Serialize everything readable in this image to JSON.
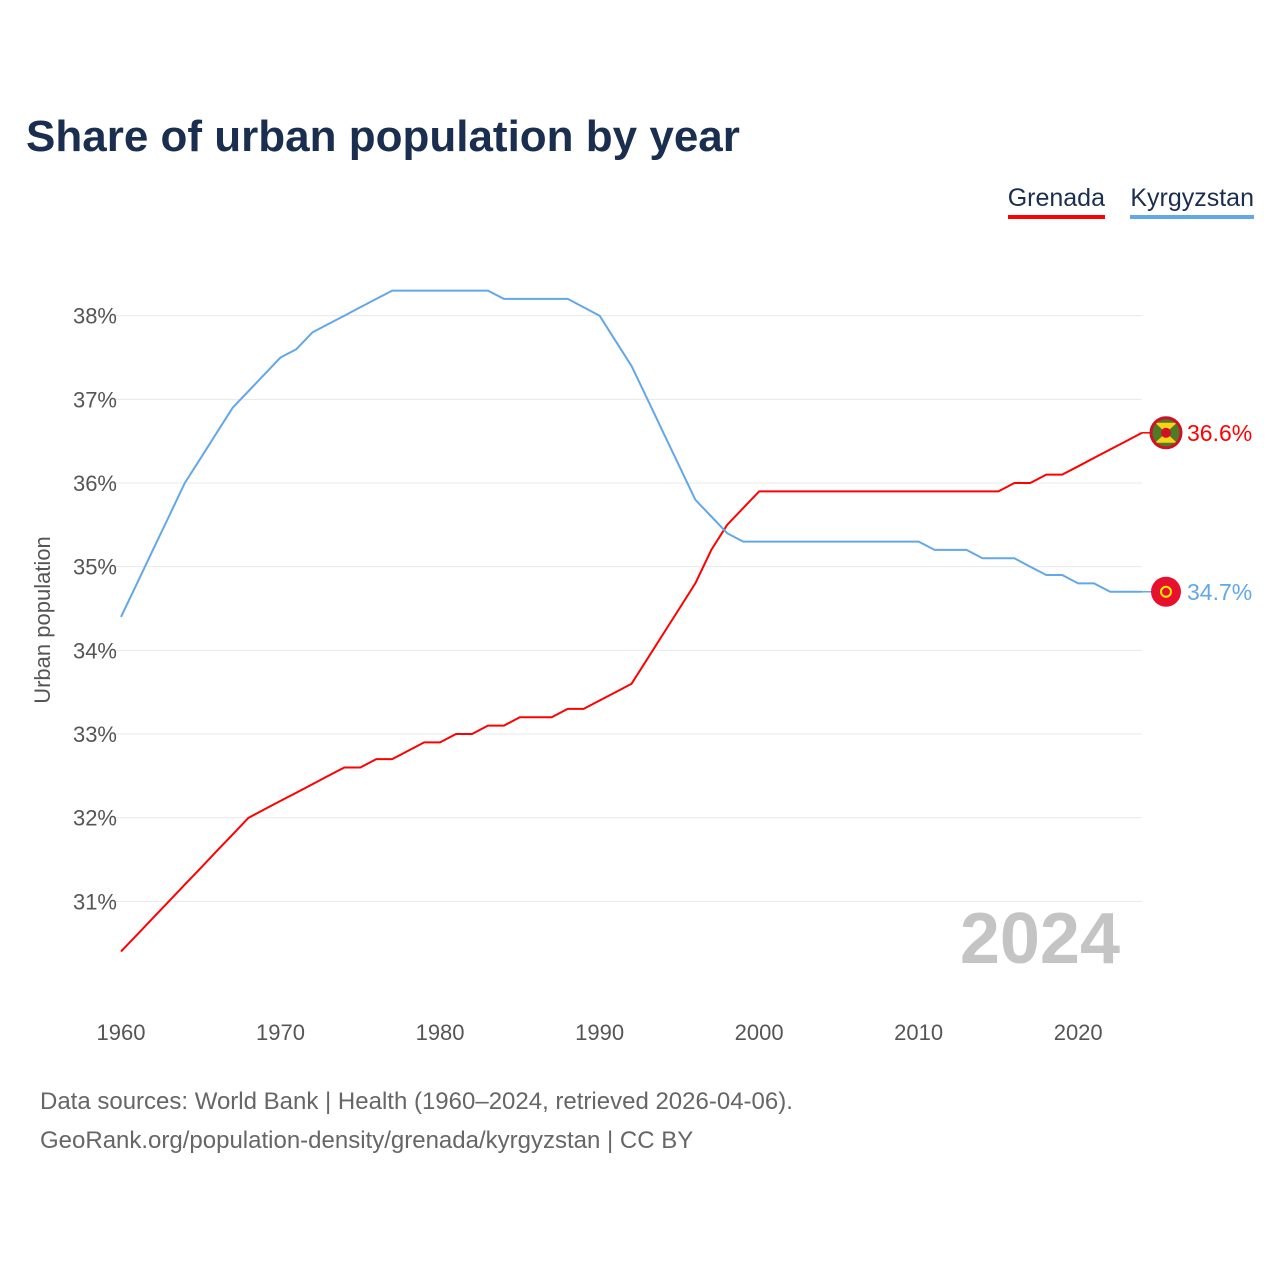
{
  "chart_data": {
    "type": "line",
    "title": "Share of urban population by year",
    "ylabel": "Urban population",
    "xlabel": "",
    "xlim": [
      1960,
      2024
    ],
    "ylim": [
      30,
      39
    ],
    "x_ticks": [
      1960,
      1970,
      1980,
      1990,
      2000,
      2010,
      2020
    ],
    "y_ticks": [
      31,
      32,
      33,
      34,
      35,
      36,
      37,
      38
    ],
    "y_tick_labels": [
      "31%",
      "32%",
      "33%",
      "34%",
      "35%",
      "36%",
      "37%",
      "38%"
    ],
    "grid": true,
    "legend_position": "top-right",
    "year_watermark": "2024",
    "x": [
      1960,
      1961,
      1962,
      1963,
      1964,
      1965,
      1966,
      1967,
      1968,
      1969,
      1970,
      1971,
      1972,
      1973,
      1974,
      1975,
      1976,
      1977,
      1978,
      1979,
      1980,
      1981,
      1982,
      1983,
      1984,
      1985,
      1986,
      1987,
      1988,
      1989,
      1990,
      1991,
      1992,
      1993,
      1994,
      1995,
      1996,
      1997,
      1998,
      1999,
      2000,
      2001,
      2002,
      2003,
      2004,
      2005,
      2006,
      2007,
      2008,
      2009,
      2010,
      2011,
      2012,
      2013,
      2014,
      2015,
      2016,
      2017,
      2018,
      2019,
      2020,
      2021,
      2022,
      2023,
      2024
    ],
    "series": [
      {
        "name": "Grenada",
        "color": "#ff0000",
        "end_label": "36.6%",
        "values": [
          30.4,
          30.6,
          30.8,
          31.0,
          31.2,
          31.4,
          31.6,
          31.8,
          32.0,
          32.1,
          32.2,
          32.3,
          32.4,
          32.5,
          32.6,
          32.6,
          32.7,
          32.7,
          32.8,
          32.9,
          32.9,
          33.0,
          33.0,
          33.1,
          33.1,
          33.2,
          33.2,
          33.2,
          33.3,
          33.3,
          33.4,
          33.5,
          33.6,
          33.9,
          34.2,
          34.5,
          34.8,
          35.2,
          35.5,
          35.7,
          35.9,
          35.9,
          35.9,
          35.9,
          35.9,
          35.9,
          35.9,
          35.9,
          35.9,
          35.9,
          35.9,
          35.9,
          35.9,
          35.9,
          35.9,
          35.9,
          36.0,
          36.0,
          36.1,
          36.1,
          36.2,
          36.3,
          36.4,
          36.5,
          36.6
        ]
      },
      {
        "name": "Kyrgyzstan",
        "color": "#62a8e8",
        "end_label": "34.7%",
        "values": [
          34.4,
          34.8,
          35.2,
          35.6,
          36.0,
          36.3,
          36.6,
          36.9,
          37.1,
          37.3,
          37.5,
          37.6,
          37.8,
          37.9,
          38.0,
          38.1,
          38.2,
          38.3,
          38.3,
          38.3,
          38.3,
          38.3,
          38.3,
          38.3,
          38.2,
          38.2,
          38.2,
          38.2,
          38.2,
          38.1,
          38.0,
          37.7,
          37.4,
          37.0,
          36.6,
          36.2,
          35.8,
          35.6,
          35.4,
          35.3,
          35.3,
          35.3,
          35.3,
          35.3,
          35.3,
          35.3,
          35.3,
          35.3,
          35.3,
          35.3,
          35.3,
          35.2,
          35.2,
          35.2,
          35.1,
          35.1,
          35.1,
          35.0,
          34.9,
          34.9,
          34.8,
          34.8,
          34.7,
          34.7,
          34.7
        ]
      }
    ]
  },
  "footer": {
    "line1": "Data sources: World Bank | Health (1960–2024, retrieved 2026-04-06).",
    "line2": "GeoRank.org/population-density/grenada/kyrgyzstan | CC BY"
  }
}
